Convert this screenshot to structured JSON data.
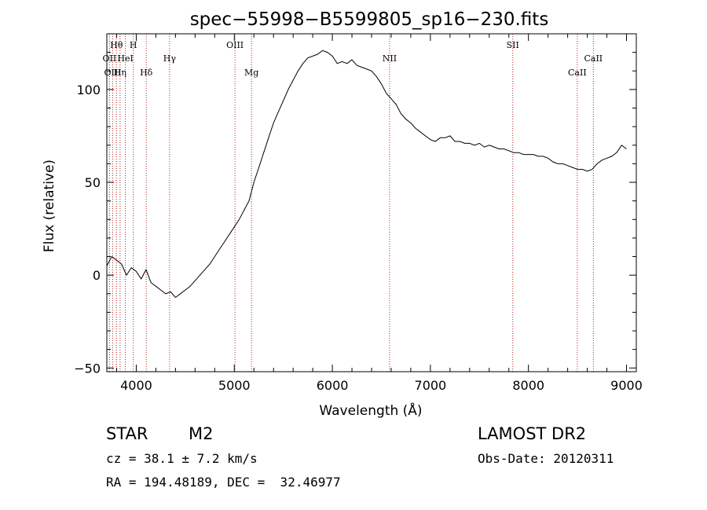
{
  "chart_data": {
    "type": "line",
    "title": "spec−55998−B5599805_sp16−230.fits",
    "xlabel": "Wavelength (Å)",
    "ylabel": "Flux (relative)",
    "xlim": [
      3700,
      9100
    ],
    "ylim": [
      -52,
      130
    ],
    "xticks": [
      4000,
      5000,
      6000,
      7000,
      8000,
      9000
    ],
    "yticks": [
      -50,
      0,
      50,
      100
    ],
    "grid": false,
    "series": [
      {
        "x": [
          3700,
          3750,
          3800,
          3850,
          3900,
          3950,
          4000,
          4050,
          4100,
          4150,
          4200,
          4250,
          4300,
          4350,
          4400,
          4450,
          4500,
          4550,
          4600,
          4650,
          4700,
          4750,
          4800,
          4850,
          4900,
          4950,
          5000,
          5050,
          5100,
          5150,
          5200,
          5250,
          5300,
          5350,
          5400,
          5450,
          5500,
          5550,
          5600,
          5650,
          5700,
          5750,
          5800,
          5850,
          5900,
          5950,
          6000,
          6050,
          6100,
          6150,
          6200,
          6250,
          6300,
          6350,
          6400,
          6450,
          6500,
          6550,
          6600,
          6650,
          6700,
          6750,
          6800,
          6850,
          6900,
          6950,
          7000,
          7050,
          7100,
          7150,
          7200,
          7250,
          7300,
          7350,
          7400,
          7450,
          7500,
          7550,
          7600,
          7650,
          7700,
          7750,
          7800,
          7850,
          7900,
          7950,
          8000,
          8050,
          8100,
          8150,
          8200,
          8250,
          8300,
          8350,
          8400,
          8450,
          8500,
          8550,
          8600,
          8650,
          8700,
          8750,
          8800,
          8850,
          8900,
          8950,
          9000
        ],
        "values": [
          5,
          10,
          8,
          6,
          0,
          4,
          2,
          -2,
          3,
          -4,
          -6,
          -8,
          -10,
          -9,
          -12,
          -10,
          -8,
          -6,
          -3,
          0,
          3,
          6,
          10,
          14,
          18,
          22,
          26,
          30,
          35,
          40,
          50,
          58,
          66,
          74,
          82,
          88,
          94,
          100,
          105,
          110,
          114,
          117,
          118,
          119,
          121,
          120,
          118,
          114,
          115,
          114,
          116,
          113,
          112,
          111,
          110,
          107,
          103,
          98,
          95,
          92,
          87,
          84,
          82,
          79,
          77,
          75,
          73,
          72,
          74,
          74,
          75,
          72,
          72,
          71,
          71,
          70,
          71,
          69,
          70,
          69,
          68,
          68,
          67,
          66,
          66,
          65,
          65,
          65,
          64,
          64,
          63,
          61,
          60,
          60,
          59,
          58,
          57,
          57,
          56,
          57,
          60,
          62,
          63,
          64,
          66,
          70,
          68
        ]
      }
    ],
    "lines": [
      {
        "name": "Hθ",
        "wavelength": 3798,
        "row": 1
      },
      {
        "name": "H",
        "wavelength": 3970,
        "row": 1
      },
      {
        "name": "OII",
        "wavelength": 3727,
        "row": 2
      },
      {
        "name": "HeI",
        "wavelength": 3889,
        "row": 2
      },
      {
        "name": "Hγ",
        "wavelength": 4340,
        "row": 2
      },
      {
        "name": "OIII",
        "wavelength": 3760,
        "row": 3
      },
      {
        "name": "Hη",
        "wavelength": 3835,
        "row": 3
      },
      {
        "name": "Hδ",
        "wavelength": 4102,
        "row": 3
      },
      {
        "name": "OIII",
        "wavelength": 5007,
        "row": 1
      },
      {
        "name": "Mg",
        "wavelength": 5175,
        "row": 3
      },
      {
        "name": "NII",
        "wavelength": 6584,
        "row": 2
      },
      {
        "name": "SII",
        "wavelength": 7840,
        "row": 1
      },
      {
        "name": "CaII",
        "wavelength": 8662,
        "row": 2
      },
      {
        "name": "CaII",
        "wavelength": 8498,
        "row": 3
      }
    ]
  },
  "info": {
    "object_class": "STAR",
    "subclass": "M2",
    "survey": "LAMOST DR2",
    "cz": "cz = 38.1 ± 7.2 km/s",
    "obs_date": "Obs-Date: 20120311",
    "coords": "RA = 194.48189, DEC =  32.46977"
  },
  "colors": {
    "axis": "#000000",
    "spectrum": "#000000",
    "line_marker": "#b22222"
  }
}
